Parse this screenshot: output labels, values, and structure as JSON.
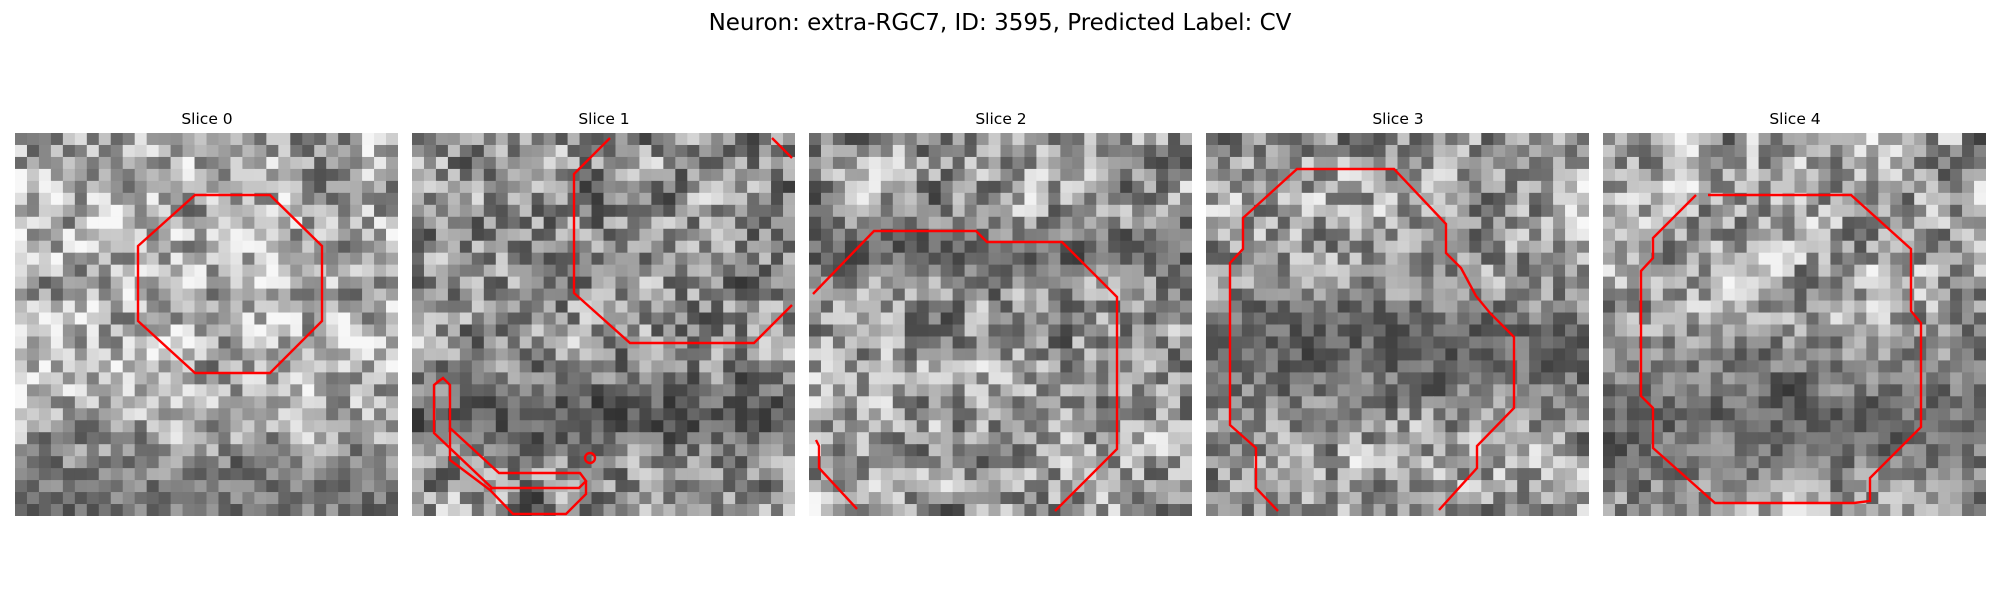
{
  "figure": {
    "title": "Neuron: extra-RGC7, ID: 3595, Predicted Label: CV"
  },
  "colors": {
    "contour": "#ff0000",
    "background": "#ffffff"
  },
  "panels": [
    {
      "title": "Slice 0"
    },
    {
      "title": "Slice 1"
    },
    {
      "title": "Slice 2"
    },
    {
      "title": "Slice 3"
    },
    {
      "title": "Slice 4"
    }
  ]
}
